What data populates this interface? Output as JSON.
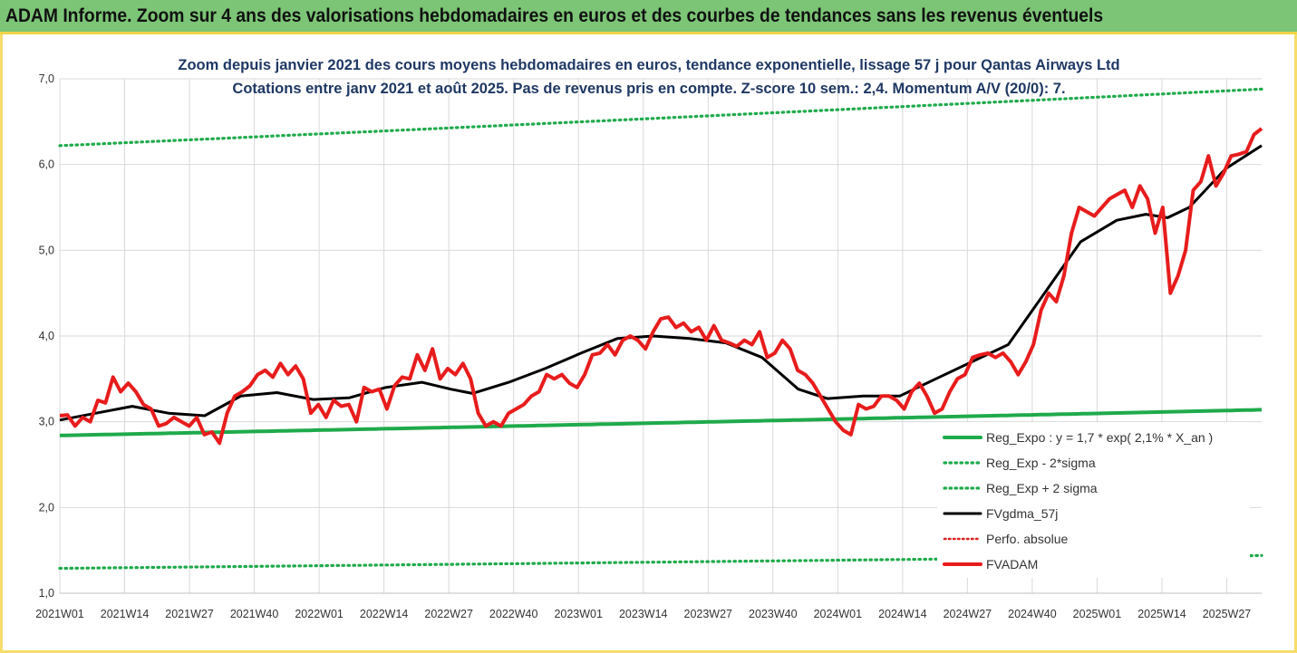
{
  "banner": {
    "title": "ADAM Informe. Zoom sur 4 ans des valorisations hebdomadaires en euros et des courbes de tendances sans les revenus éventuels"
  },
  "colors": {
    "banner_bg": "#7cc576",
    "frame": "#f6dd6b",
    "title_text": "#1f3864",
    "reg_expo": "#1faa4b",
    "fvgdma": "#000000",
    "perfo": "#e02020",
    "fvadam": "#e81c1c",
    "grid": "#d9d9d9"
  },
  "chart_data": {
    "type": "line",
    "title_line1": "Zoom depuis janvier 2021 des cours moyens hebdomadaires en euros, tendance exponentielle, lissage 57 j pour Qantas Airways Ltd",
    "title_line2": "Cotations entre janv 2021 et août 2025.  Pas de revenus pris en compte. Z-score 10 sem.: 2,4. Momentum A/V (20/0): 7.",
    "ylim": [
      1.0,
      7.0
    ],
    "y_ticks": [
      "1,0",
      "2,0",
      "3,0",
      "4,0",
      "5,0",
      "6,0",
      "7,0"
    ],
    "x_ticks": [
      "2021W01",
      "2021W14",
      "2021W27",
      "2021W40",
      "2022W01",
      "2022W14",
      "2022W27",
      "2022W40",
      "2023W01",
      "2023W14",
      "2023W27",
      "2023W40",
      "2024W01",
      "2024W14",
      "2024W27",
      "2024W40",
      "2025W01",
      "2025W14",
      "2025W27"
    ],
    "x_tick_index": [
      0,
      13,
      26,
      39,
      52,
      65,
      78,
      91,
      104,
      117,
      130,
      143,
      156,
      169,
      182,
      195,
      208,
      221,
      234
    ],
    "n_weeks": 242,
    "grid": true,
    "legend_position": "bottom-right",
    "legend": [
      {
        "name": "Reg_Expo : y = 1,7 * exp( 2,1% *  X_an )",
        "style": "solid-green"
      },
      {
        "name": "Reg_Exp - 2*sigma",
        "style": "dotted-green"
      },
      {
        "name": "Reg_Exp + 2 sigma",
        "style": "dotted-green"
      },
      {
        "name": "FVgdma_57j",
        "style": "solid-black"
      },
      {
        "name": "Perfo. absolue",
        "style": "dotted-red"
      },
      {
        "name": "FVADAM",
        "style": "solid-red"
      }
    ],
    "reg_expo": {
      "start": 2.84,
      "end": 3.14
    },
    "reg_minus": {
      "start": 1.29,
      "end": 1.44
    },
    "reg_plus": {
      "start": 6.22,
      "end": 6.88
    },
    "fvadam_points": [
      [
        0,
        3.07
      ],
      [
        2,
        3.08
      ],
      [
        4,
        2.95
      ],
      [
        6,
        3.05
      ],
      [
        8,
        3.0
      ],
      [
        10,
        3.25
      ],
      [
        12,
        3.22
      ],
      [
        14,
        3.52
      ],
      [
        16,
        3.35
      ],
      [
        18,
        3.45
      ],
      [
        20,
        3.35
      ],
      [
        22,
        3.2
      ],
      [
        24,
        3.15
      ],
      [
        26,
        2.95
      ],
      [
        28,
        2.98
      ],
      [
        30,
        3.05
      ],
      [
        32,
        3.0
      ],
      [
        34,
        2.95
      ],
      [
        36,
        3.05
      ],
      [
        38,
        2.85
      ],
      [
        40,
        2.88
      ],
      [
        42,
        2.75
      ],
      [
        44,
        3.1
      ],
      [
        46,
        3.3
      ],
      [
        48,
        3.35
      ],
      [
        50,
        3.42
      ],
      [
        52,
        3.55
      ],
      [
        54,
        3.6
      ],
      [
        56,
        3.52
      ],
      [
        58,
        3.68
      ],
      [
        60,
        3.55
      ],
      [
        62,
        3.65
      ],
      [
        64,
        3.5
      ],
      [
        66,
        3.1
      ],
      [
        68,
        3.2
      ],
      [
        70,
        3.05
      ],
      [
        72,
        3.25
      ],
      [
        74,
        3.18
      ],
      [
        76,
        3.2
      ],
      [
        78,
        3.0
      ],
      [
        80,
        3.4
      ],
      [
        82,
        3.35
      ],
      [
        84,
        3.38
      ],
      [
        86,
        3.15
      ],
      [
        88,
        3.42
      ],
      [
        90,
        3.52
      ],
      [
        92,
        3.5
      ],
      [
        94,
        3.78
      ],
      [
        96,
        3.6
      ],
      [
        98,
        3.85
      ],
      [
        100,
        3.5
      ],
      [
        102,
        3.62
      ],
      [
        104,
        3.55
      ],
      [
        106,
        3.68
      ],
      [
        108,
        3.5
      ],
      [
        110,
        3.1
      ],
      [
        112,
        2.95
      ],
      [
        114,
        3.0
      ],
      [
        116,
        2.95
      ],
      [
        118,
        3.1
      ],
      [
        120,
        3.15
      ],
      [
        122,
        3.2
      ],
      [
        124,
        3.3
      ],
      [
        126,
        3.35
      ],
      [
        128,
        3.55
      ],
      [
        130,
        3.5
      ],
      [
        132,
        3.55
      ],
      [
        134,
        3.45
      ],
      [
        136,
        3.4
      ],
      [
        138,
        3.55
      ],
      [
        140,
        3.78
      ],
      [
        142,
        3.8
      ],
      [
        144,
        3.9
      ],
      [
        146,
        3.78
      ],
      [
        148,
        3.95
      ],
      [
        150,
        4.0
      ],
      [
        152,
        3.95
      ],
      [
        154,
        3.85
      ],
      [
        156,
        4.05
      ],
      [
        158,
        4.2
      ],
      [
        160,
        4.22
      ],
      [
        162,
        4.1
      ],
      [
        164,
        4.15
      ],
      [
        166,
        4.05
      ],
      [
        168,
        4.1
      ],
      [
        170,
        3.95
      ],
      [
        172,
        4.12
      ],
      [
        174,
        3.95
      ],
      [
        176,
        3.92
      ],
      [
        178,
        3.88
      ],
      [
        180,
        3.95
      ],
      [
        182,
        3.9
      ],
      [
        184,
        4.05
      ],
      [
        186,
        3.75
      ],
      [
        188,
        3.8
      ],
      [
        190,
        3.95
      ],
      [
        192,
        3.85
      ],
      [
        194,
        3.6
      ]
    ],
    "fvadam_points_tail": [
      [
        196,
        3.55
      ],
      [
        198,
        3.45
      ],
      [
        200,
        3.3
      ],
      [
        202,
        3.15
      ],
      [
        204,
        3.0
      ],
      [
        206,
        2.9
      ],
      [
        208,
        2.85
      ],
      [
        210,
        3.2
      ],
      [
        212,
        3.15
      ],
      [
        214,
        3.18
      ],
      [
        216,
        3.3
      ],
      [
        218,
        3.3
      ],
      [
        220,
        3.25
      ],
      [
        222,
        3.15
      ],
      [
        224,
        3.35
      ],
      [
        226,
        3.45
      ],
      [
        228,
        3.3
      ],
      [
        230,
        3.1
      ],
      [
        232,
        3.15
      ],
      [
        234,
        3.35
      ],
      [
        236,
        3.5
      ],
      [
        238,
        3.55
      ],
      [
        240,
        3.75
      ],
      [
        242,
        3.78
      ],
      [
        244,
        3.8
      ],
      [
        246,
        3.75
      ],
      [
        248,
        3.8
      ],
      [
        250,
        3.7
      ],
      [
        252,
        3.55
      ],
      [
        254,
        3.7
      ],
      [
        256,
        3.9
      ],
      [
        258,
        4.3
      ],
      [
        260,
        4.5
      ],
      [
        262,
        4.4
      ],
      [
        264,
        4.7
      ],
      [
        266,
        5.2
      ],
      [
        268,
        5.5
      ],
      [
        270,
        5.45
      ],
      [
        272,
        5.4
      ],
      [
        274,
        5.5
      ],
      [
        276,
        5.6
      ],
      [
        278,
        5.65
      ],
      [
        280,
        5.7
      ],
      [
        282,
        5.5
      ],
      [
        284,
        5.75
      ],
      [
        286,
        5.6
      ],
      [
        288,
        5.2
      ],
      [
        290,
        5.5
      ],
      [
        292,
        4.5
      ],
      [
        294,
        4.7
      ],
      [
        296,
        5.0
      ],
      [
        298,
        5.7
      ],
      [
        300,
        5.8
      ],
      [
        302,
        6.1
      ],
      [
        304,
        5.75
      ],
      [
        306,
        5.9
      ],
      [
        308,
        6.1
      ],
      [
        310,
        6.12
      ],
      [
        312,
        6.15
      ],
      [
        314,
        6.35
      ],
      [
        316,
        6.42
      ]
    ],
    "fvgdma_points": [
      [
        0,
        3.02
      ],
      [
        10,
        3.1
      ],
      [
        20,
        3.18
      ],
      [
        30,
        3.1
      ],
      [
        40,
        3.07
      ],
      [
        50,
        3.3
      ],
      [
        60,
        3.34
      ],
      [
        70,
        3.26
      ],
      [
        80,
        3.28
      ],
      [
        90,
        3.4
      ],
      [
        100,
        3.46
      ],
      [
        108,
        3.38
      ],
      [
        114,
        3.33
      ],
      [
        124,
        3.46
      ],
      [
        134,
        3.62
      ],
      [
        144,
        3.8
      ],
      [
        154,
        3.97
      ],
      [
        164,
        4.0
      ],
      [
        174,
        3.97
      ],
      [
        184,
        3.92
      ],
      [
        194,
        3.75
      ],
      [
        204,
        3.38
      ],
      [
        212,
        3.27
      ],
      [
        222,
        3.3
      ],
      [
        232,
        3.3
      ],
      [
        242,
        3.5
      ],
      [
        252,
        3.7
      ],
      [
        262,
        3.9
      ],
      [
        272,
        4.5
      ],
      [
        282,
        5.1
      ],
      [
        292,
        5.35
      ],
      [
        300,
        5.42
      ],
      [
        306,
        5.38
      ],
      [
        312,
        5.5
      ],
      [
        322,
        5.95
      ],
      [
        332,
        6.22
      ]
    ]
  }
}
